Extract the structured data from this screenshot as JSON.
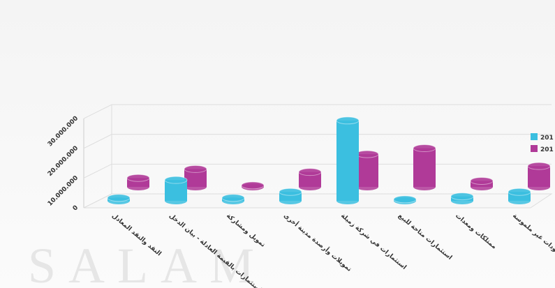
{
  "watermark": "SALAM",
  "chart_data": {
    "type": "bar",
    "categories": [
      "النقد والنقد المعادل",
      "استثمارات بالقيمة العادلة - بيان الدخل",
      "تمويل ومشاركة",
      "تمويلات وأرصدة مدينة أخرى",
      "استثمارات في شركة زميلة",
      "استثمارات متاحة للبيع",
      "ممتلكات ومعدات",
      "موجودات غير ملموسة"
    ],
    "series": [
      {
        "name": "201",
        "color": "#3bbfe0",
        "values": [
          1000000,
          7000000,
          1000000,
          3000000,
          27000000,
          500000,
          1500000,
          3000000
        ]
      },
      {
        "name": "201",
        "color": "#b03a98",
        "values": [
          3000000,
          6000000,
          500000,
          5000000,
          11000000,
          13000000,
          2000000,
          7000000
        ]
      }
    ],
    "ylim": [
      0,
      30000000
    ],
    "yticks": [
      0,
      {
        "value": 10000000,
        "label": "10.000.000"
      },
      {
        "value": 20000000,
        "label": "20.000.000"
      },
      {
        "value": 30000000,
        "label": "30.000.000"
      }
    ],
    "grid": true,
    "legend": "right"
  }
}
